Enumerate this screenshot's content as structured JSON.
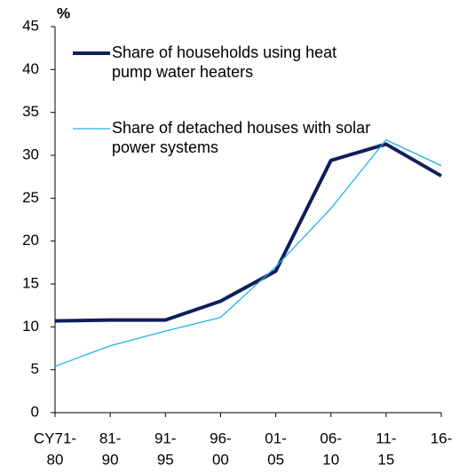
{
  "chart_data": {
    "type": "line",
    "y_label": "%",
    "categories": [
      [
        "CY71-",
        "80"
      ],
      [
        "81-",
        "90"
      ],
      [
        "91-",
        "95"
      ],
      [
        "96-",
        "00"
      ],
      [
        "01-",
        "05"
      ],
      [
        "06-",
        "10"
      ],
      [
        "11-",
        "15"
      ],
      [
        "16-"
      ]
    ],
    "series": [
      {
        "name": "Share of households using heat pump water heaters",
        "color": "#0f1f5a",
        "width": 4,
        "values": [
          10.7,
          10.8,
          10.8,
          13.0,
          16.5,
          29.4,
          31.3,
          27.6
        ]
      },
      {
        "name": "Share of detached houses with solar power systems",
        "color": "#1fb2e6",
        "width": 1.3,
        "values": [
          5.4,
          7.8,
          9.5,
          11.1,
          17.0,
          23.8,
          31.8,
          28.8
        ]
      }
    ],
    "ylim": [
      0,
      45
    ],
    "yticks": [
      0,
      5,
      10,
      15,
      20,
      25,
      30,
      35,
      40,
      45
    ]
  }
}
